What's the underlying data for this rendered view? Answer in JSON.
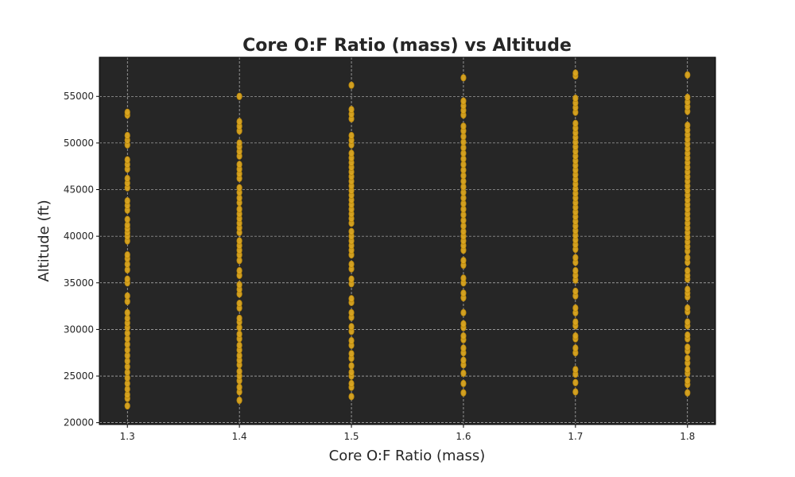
{
  "chart_data": {
    "type": "scatter",
    "title": "Core O:F Ratio (mass) vs Altitude",
    "xlabel": "Core O:F Ratio (mass)",
    "ylabel": "Altitude (ft)",
    "xlim": [
      1.275,
      1.825
    ],
    "ylim": [
      19800,
      59200
    ],
    "x_ticks": [
      "1.3",
      "1.4",
      "1.5",
      "1.6",
      "1.7",
      "1.8"
    ],
    "y_ticks": [
      "20000",
      "25000",
      "30000",
      "35000",
      "40000",
      "45000",
      "50000",
      "55000"
    ],
    "grid": true,
    "legend": "none",
    "colors": {
      "background": "#262626",
      "marker_fill": "#daa520",
      "marker_edge": "#b8860b",
      "grid": "#d9d9d9"
    },
    "series": [
      {
        "points": [
          [
            1.3,
            21800
          ],
          [
            1.3,
            22600
          ],
          [
            1.3,
            23000
          ],
          [
            1.3,
            23600
          ],
          [
            1.3,
            24200
          ],
          [
            1.3,
            24800
          ],
          [
            1.3,
            25400
          ],
          [
            1.3,
            26000
          ],
          [
            1.3,
            26600
          ],
          [
            1.3,
            27200
          ],
          [
            1.3,
            27800
          ],
          [
            1.3,
            28400
          ],
          [
            1.3,
            29000
          ],
          [
            1.3,
            29600
          ],
          [
            1.3,
            30200
          ],
          [
            1.3,
            30700
          ],
          [
            1.3,
            31200
          ],
          [
            1.3,
            31800
          ],
          [
            1.3,
            33000
          ],
          [
            1.3,
            33600
          ],
          [
            1.3,
            35000
          ],
          [
            1.3,
            35400
          ],
          [
            1.3,
            36400
          ],
          [
            1.3,
            37000
          ],
          [
            1.3,
            37600
          ],
          [
            1.3,
            38000
          ],
          [
            1.3,
            39500
          ],
          [
            1.3,
            40000
          ],
          [
            1.3,
            40400
          ],
          [
            1.3,
            40800
          ],
          [
            1.3,
            41200
          ],
          [
            1.3,
            41800
          ],
          [
            1.3,
            42800
          ],
          [
            1.3,
            43300
          ],
          [
            1.3,
            43800
          ],
          [
            1.3,
            45200
          ],
          [
            1.3,
            45700
          ],
          [
            1.3,
            46200
          ],
          [
            1.3,
            47200
          ],
          [
            1.3,
            47700
          ],
          [
            1.3,
            48200
          ],
          [
            1.3,
            49800
          ],
          [
            1.3,
            50300
          ],
          [
            1.3,
            50800
          ],
          [
            1.3,
            53000
          ],
          [
            1.3,
            53300
          ],
          [
            1.4,
            22400
          ],
          [
            1.4,
            23300
          ],
          [
            1.4,
            23800
          ],
          [
            1.4,
            24500
          ],
          [
            1.4,
            25000
          ],
          [
            1.4,
            25500
          ],
          [
            1.4,
            26200
          ],
          [
            1.4,
            26700
          ],
          [
            1.4,
            27200
          ],
          [
            1.4,
            27800
          ],
          [
            1.4,
            28300
          ],
          [
            1.4,
            29000
          ],
          [
            1.4,
            29500
          ],
          [
            1.4,
            30200
          ],
          [
            1.4,
            30800
          ],
          [
            1.4,
            31200
          ],
          [
            1.4,
            32300
          ],
          [
            1.4,
            32800
          ],
          [
            1.4,
            33800
          ],
          [
            1.4,
            34300
          ],
          [
            1.4,
            34800
          ],
          [
            1.4,
            35800
          ],
          [
            1.4,
            36300
          ],
          [
            1.4,
            37400
          ],
          [
            1.4,
            38000
          ],
          [
            1.4,
            38500
          ],
          [
            1.4,
            39000
          ],
          [
            1.4,
            39500
          ],
          [
            1.4,
            40400
          ],
          [
            1.4,
            40900
          ],
          [
            1.4,
            41400
          ],
          [
            1.4,
            41900
          ],
          [
            1.4,
            42400
          ],
          [
            1.4,
            42900
          ],
          [
            1.4,
            43600
          ],
          [
            1.4,
            44100
          ],
          [
            1.4,
            44700
          ],
          [
            1.4,
            45200
          ],
          [
            1.4,
            46200
          ],
          [
            1.4,
            46700
          ],
          [
            1.4,
            47200
          ],
          [
            1.4,
            47700
          ],
          [
            1.4,
            48600
          ],
          [
            1.4,
            49100
          ],
          [
            1.4,
            49600
          ],
          [
            1.4,
            50000
          ],
          [
            1.4,
            51300
          ],
          [
            1.4,
            51800
          ],
          [
            1.4,
            52300
          ],
          [
            1.4,
            55000
          ],
          [
            1.5,
            22800
          ],
          [
            1.5,
            23800
          ],
          [
            1.5,
            24200
          ],
          [
            1.5,
            25000
          ],
          [
            1.5,
            25400
          ],
          [
            1.5,
            26100
          ],
          [
            1.5,
            26900
          ],
          [
            1.5,
            27400
          ],
          [
            1.5,
            28300
          ],
          [
            1.5,
            28800
          ],
          [
            1.5,
            29800
          ],
          [
            1.5,
            30300
          ],
          [
            1.5,
            31300
          ],
          [
            1.5,
            31800
          ],
          [
            1.5,
            32900
          ],
          [
            1.5,
            33300
          ],
          [
            1.5,
            34900
          ],
          [
            1.5,
            35400
          ],
          [
            1.5,
            36500
          ],
          [
            1.5,
            37000
          ],
          [
            1.5,
            38000
          ],
          [
            1.5,
            38500
          ],
          [
            1.5,
            39000
          ],
          [
            1.5,
            39500
          ],
          [
            1.5,
            40000
          ],
          [
            1.5,
            40500
          ],
          [
            1.5,
            41400
          ],
          [
            1.5,
            41900
          ],
          [
            1.5,
            42400
          ],
          [
            1.5,
            42900
          ],
          [
            1.5,
            43400
          ],
          [
            1.5,
            43900
          ],
          [
            1.5,
            44400
          ],
          [
            1.5,
            44900
          ],
          [
            1.5,
            45400
          ],
          [
            1.5,
            45900
          ],
          [
            1.5,
            46400
          ],
          [
            1.5,
            46900
          ],
          [
            1.5,
            47400
          ],
          [
            1.5,
            47900
          ],
          [
            1.5,
            48400
          ],
          [
            1.5,
            48900
          ],
          [
            1.5,
            49800
          ],
          [
            1.5,
            50300
          ],
          [
            1.5,
            50800
          ],
          [
            1.5,
            52600
          ],
          [
            1.5,
            53100
          ],
          [
            1.5,
            53600
          ],
          [
            1.5,
            56200
          ],
          [
            1.6,
            23200
          ],
          [
            1.6,
            24200
          ],
          [
            1.6,
            25300
          ],
          [
            1.6,
            26200
          ],
          [
            1.6,
            26700
          ],
          [
            1.6,
            27500
          ],
          [
            1.6,
            28000
          ],
          [
            1.6,
            28900
          ],
          [
            1.6,
            29300
          ],
          [
            1.6,
            30200
          ],
          [
            1.6,
            30600
          ],
          [
            1.6,
            31800
          ],
          [
            1.6,
            33400
          ],
          [
            1.6,
            33900
          ],
          [
            1.6,
            35000
          ],
          [
            1.6,
            35500
          ],
          [
            1.6,
            36900
          ],
          [
            1.6,
            37400
          ],
          [
            1.6,
            38500
          ],
          [
            1.6,
            39000
          ],
          [
            1.6,
            39500
          ],
          [
            1.6,
            40000
          ],
          [
            1.6,
            40500
          ],
          [
            1.6,
            41100
          ],
          [
            1.6,
            41700
          ],
          [
            1.6,
            42300
          ],
          [
            1.6,
            42900
          ],
          [
            1.6,
            43500
          ],
          [
            1.6,
            44100
          ],
          [
            1.6,
            44700
          ],
          [
            1.6,
            45300
          ],
          [
            1.6,
            45900
          ],
          [
            1.6,
            46500
          ],
          [
            1.6,
            47100
          ],
          [
            1.6,
            47700
          ],
          [
            1.6,
            48300
          ],
          [
            1.6,
            48900
          ],
          [
            1.6,
            49500
          ],
          [
            1.6,
            50100
          ],
          [
            1.6,
            50700
          ],
          [
            1.6,
            51300
          ],
          [
            1.6,
            51800
          ],
          [
            1.6,
            53000
          ],
          [
            1.6,
            53500
          ],
          [
            1.6,
            54000
          ],
          [
            1.6,
            54500
          ],
          [
            1.6,
            57000
          ],
          [
            1.7,
            23300
          ],
          [
            1.7,
            24300
          ],
          [
            1.7,
            25200
          ],
          [
            1.7,
            25700
          ],
          [
            1.7,
            27500
          ],
          [
            1.7,
            28000
          ],
          [
            1.7,
            29000
          ],
          [
            1.7,
            29300
          ],
          [
            1.7,
            30400
          ],
          [
            1.7,
            30800
          ],
          [
            1.7,
            31800
          ],
          [
            1.7,
            32300
          ],
          [
            1.7,
            33600
          ],
          [
            1.7,
            34100
          ],
          [
            1.7,
            35300
          ],
          [
            1.7,
            35800
          ],
          [
            1.7,
            36300
          ],
          [
            1.7,
            37200
          ],
          [
            1.7,
            37700
          ],
          [
            1.7,
            38600
          ],
          [
            1.7,
            39100
          ],
          [
            1.7,
            39600
          ],
          [
            1.7,
            40100
          ],
          [
            1.7,
            40600
          ],
          [
            1.7,
            41100
          ],
          [
            1.7,
            41600
          ],
          [
            1.7,
            42100
          ],
          [
            1.7,
            42600
          ],
          [
            1.7,
            43100
          ],
          [
            1.7,
            43600
          ],
          [
            1.7,
            44100
          ],
          [
            1.7,
            44600
          ],
          [
            1.7,
            45100
          ],
          [
            1.7,
            45600
          ],
          [
            1.7,
            46100
          ],
          [
            1.7,
            46600
          ],
          [
            1.7,
            47100
          ],
          [
            1.7,
            47600
          ],
          [
            1.7,
            48100
          ],
          [
            1.7,
            48600
          ],
          [
            1.7,
            49100
          ],
          [
            1.7,
            49600
          ],
          [
            1.7,
            50100
          ],
          [
            1.7,
            50600
          ],
          [
            1.7,
            51100
          ],
          [
            1.7,
            51600
          ],
          [
            1.7,
            52100
          ],
          [
            1.7,
            53300
          ],
          [
            1.7,
            53800
          ],
          [
            1.7,
            54300
          ],
          [
            1.7,
            54800
          ],
          [
            1.7,
            57200
          ],
          [
            1.7,
            57500
          ],
          [
            1.8,
            23200
          ],
          [
            1.8,
            24100
          ],
          [
            1.8,
            24500
          ],
          [
            1.8,
            25300
          ],
          [
            1.8,
            25700
          ],
          [
            1.8,
            26400
          ],
          [
            1.8,
            26900
          ],
          [
            1.8,
            27700
          ],
          [
            1.8,
            28100
          ],
          [
            1.8,
            29000
          ],
          [
            1.8,
            29400
          ],
          [
            1.8,
            30400
          ],
          [
            1.8,
            30800
          ],
          [
            1.8,
            31900
          ],
          [
            1.8,
            32300
          ],
          [
            1.8,
            33500
          ],
          [
            1.8,
            33900
          ],
          [
            1.8,
            34300
          ],
          [
            1.8,
            35400
          ],
          [
            1.8,
            35800
          ],
          [
            1.8,
            36300
          ],
          [
            1.8,
            37200
          ],
          [
            1.8,
            37700
          ],
          [
            1.8,
            38400
          ],
          [
            1.8,
            38900
          ],
          [
            1.8,
            39400
          ],
          [
            1.8,
            39900
          ],
          [
            1.8,
            40400
          ],
          [
            1.8,
            40900
          ],
          [
            1.8,
            41400
          ],
          [
            1.8,
            41900
          ],
          [
            1.8,
            42400
          ],
          [
            1.8,
            42900
          ],
          [
            1.8,
            43400
          ],
          [
            1.8,
            43900
          ],
          [
            1.8,
            44400
          ],
          [
            1.8,
            44900
          ],
          [
            1.8,
            45400
          ],
          [
            1.8,
            45900
          ],
          [
            1.8,
            46400
          ],
          [
            1.8,
            46900
          ],
          [
            1.8,
            47400
          ],
          [
            1.8,
            47900
          ],
          [
            1.8,
            48400
          ],
          [
            1.8,
            48900
          ],
          [
            1.8,
            49400
          ],
          [
            1.8,
            49900
          ],
          [
            1.8,
            50400
          ],
          [
            1.8,
            50900
          ],
          [
            1.8,
            51400
          ],
          [
            1.8,
            51900
          ],
          [
            1.8,
            53400
          ],
          [
            1.8,
            53900
          ],
          [
            1.8,
            54400
          ],
          [
            1.8,
            54900
          ],
          [
            1.8,
            57300
          ]
        ]
      }
    ]
  }
}
